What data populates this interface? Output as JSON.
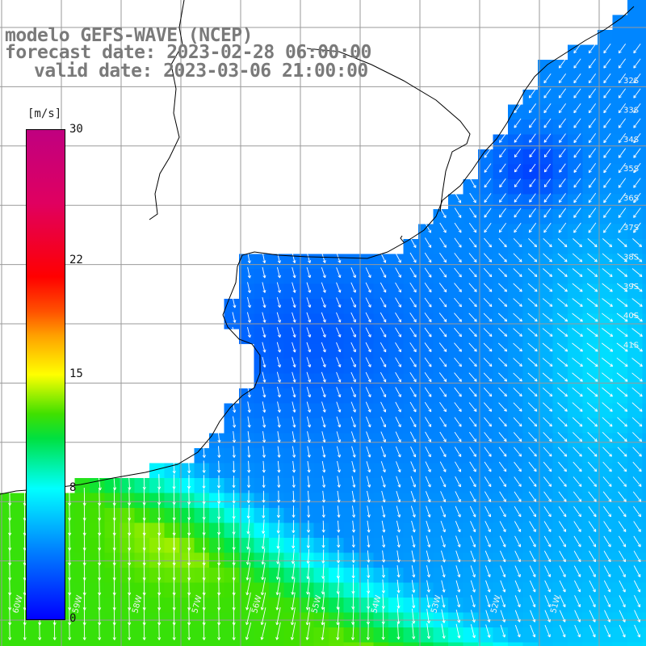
{
  "title": {
    "line1": "modelo GEFS-WAVE (NCEP)",
    "line2": "forecast date: 2023-02-28 06:00:00",
    "line3": "valid date: 2023-03-06 21:00:00"
  },
  "colorbar": {
    "unit": "[m/s]",
    "tick_values": [
      30,
      22,
      15,
      8,
      0
    ],
    "colors": {
      "low": "#0000ff",
      "mid": "#00ffff",
      "green": "#40e000",
      "yellow": "#ffff00",
      "orange": "#ff7000",
      "red": "#ff0000",
      "high": "#c00080"
    }
  },
  "map": {
    "lat_labels": [
      "32S",
      "33S",
      "34S",
      "35S",
      "36S",
      "37S",
      "38S",
      "39S",
      "40S",
      "41S"
    ],
    "lon_labels": [
      "60W",
      "59W",
      "58W",
      "57W",
      "56W",
      "55W",
      "54W",
      "53W",
      "52W",
      "51W"
    ],
    "wind_direction": "southwesterly",
    "colors": {
      "land": "#ffffff",
      "grid": "#9a9a9a",
      "coast": "#000000",
      "arrow": "#ffffff"
    }
  }
}
